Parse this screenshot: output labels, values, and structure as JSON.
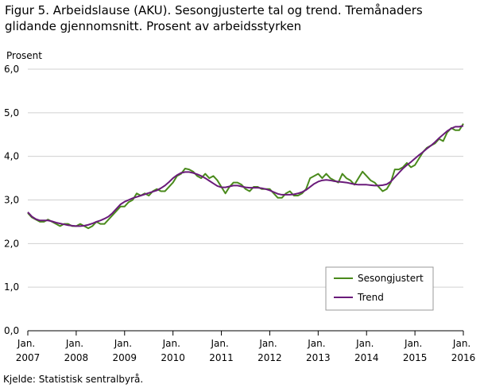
{
  "chart_data": {
    "type": "line",
    "title": "Figur 5. Arbeidslause (AKU). Sesongjusterte tal og trend. Tremånaders glidande gjennomsnitt. Prosent av arbeidsstyrken",
    "y_label": "Prosent",
    "source": "Kjelde: Statistisk sentralbyrå.",
    "categories": [
      "Jan. 2007",
      null,
      null,
      null,
      null,
      null,
      null,
      null,
      null,
      null,
      null,
      null,
      "Jan. 2008",
      null,
      null,
      null,
      null,
      null,
      null,
      null,
      null,
      null,
      null,
      null,
      "Jan. 2009",
      null,
      null,
      null,
      null,
      null,
      null,
      null,
      null,
      null,
      null,
      null,
      "Jan. 2010",
      null,
      null,
      null,
      null,
      null,
      null,
      null,
      null,
      null,
      null,
      null,
      "Jan. 2011",
      null,
      null,
      null,
      null,
      null,
      null,
      null,
      null,
      null,
      null,
      null,
      "Jan. 2012",
      null,
      null,
      null,
      null,
      null,
      null,
      null,
      null,
      null,
      null,
      null,
      "Jan. 2013",
      null,
      null,
      null,
      null,
      null,
      null,
      null,
      null,
      null,
      null,
      null,
      "Jan. 2014",
      null,
      null,
      null,
      null,
      null,
      null,
      null,
      null,
      null,
      null,
      null,
      "Jan. 2015",
      null,
      null,
      null,
      null,
      null,
      null,
      null,
      null,
      null,
      null,
      null,
      "Jan. 2016"
    ],
    "series": [
      {
        "name": "Sesongjustert",
        "color": "#4a8a1c",
        "values": [
          2.7,
          2.6,
          2.55,
          2.5,
          2.5,
          2.55,
          2.5,
          2.45,
          2.4,
          2.45,
          2.45,
          2.4,
          2.4,
          2.45,
          2.4,
          2.35,
          2.4,
          2.5,
          2.45,
          2.45,
          2.55,
          2.65,
          2.75,
          2.85,
          2.85,
          2.95,
          3.0,
          3.15,
          3.1,
          3.15,
          3.1,
          3.2,
          3.25,
          3.2,
          3.2,
          3.3,
          3.4,
          3.55,
          3.6,
          3.72,
          3.7,
          3.65,
          3.55,
          3.5,
          3.6,
          3.5,
          3.55,
          3.45,
          3.3,
          3.15,
          3.3,
          3.4,
          3.4,
          3.35,
          3.25,
          3.2,
          3.3,
          3.3,
          3.25,
          3.25,
          3.25,
          3.15,
          3.05,
          3.05,
          3.15,
          3.2,
          3.1,
          3.1,
          3.15,
          3.25,
          3.5,
          3.55,
          3.6,
          3.5,
          3.6,
          3.5,
          3.45,
          3.4,
          3.6,
          3.5,
          3.45,
          3.35,
          3.5,
          3.65,
          3.55,
          3.45,
          3.4,
          3.3,
          3.2,
          3.25,
          3.4,
          3.7,
          3.7,
          3.75,
          3.85,
          3.75,
          3.8,
          3.95,
          4.1,
          4.2,
          4.25,
          4.3,
          4.4,
          4.35,
          4.55,
          4.65,
          4.6,
          4.6,
          4.75
        ]
      },
      {
        "name": "Trend",
        "color": "#6a1b7a",
        "values": [
          2.72,
          2.62,
          2.56,
          2.53,
          2.53,
          2.53,
          2.51,
          2.48,
          2.46,
          2.44,
          2.42,
          2.41,
          2.4,
          2.4,
          2.41,
          2.43,
          2.46,
          2.5,
          2.53,
          2.57,
          2.62,
          2.7,
          2.8,
          2.9,
          2.96,
          3.0,
          3.04,
          3.07,
          3.1,
          3.13,
          3.16,
          3.19,
          3.22,
          3.27,
          3.33,
          3.41,
          3.5,
          3.57,
          3.62,
          3.64,
          3.64,
          3.62,
          3.59,
          3.55,
          3.5,
          3.44,
          3.38,
          3.32,
          3.29,
          3.29,
          3.31,
          3.33,
          3.33,
          3.31,
          3.29,
          3.28,
          3.28,
          3.28,
          3.27,
          3.25,
          3.22,
          3.18,
          3.14,
          3.12,
          3.12,
          3.12,
          3.13,
          3.15,
          3.18,
          3.23,
          3.3,
          3.37,
          3.42,
          3.45,
          3.46,
          3.45,
          3.43,
          3.42,
          3.41,
          3.4,
          3.38,
          3.36,
          3.35,
          3.35,
          3.35,
          3.34,
          3.33,
          3.33,
          3.34,
          3.36,
          3.42,
          3.52,
          3.62,
          3.72,
          3.8,
          3.87,
          3.95,
          4.03,
          4.1,
          4.18,
          4.25,
          4.33,
          4.42,
          4.5,
          4.58,
          4.64,
          4.68,
          4.68,
          4.7
        ]
      }
    ],
    "ylim": [
      0,
      6
    ],
    "yticks": [
      {
        "value": 0,
        "label": "0,0"
      },
      {
        "value": 1,
        "label": "1,0"
      },
      {
        "value": 2,
        "label": "2,0"
      },
      {
        "value": 3,
        "label": "3,0"
      },
      {
        "value": 4,
        "label": "4,0"
      },
      {
        "value": 5,
        "label": "5,0"
      },
      {
        "value": 6,
        "label": "6,0"
      }
    ],
    "grid": true,
    "legend": "lower right"
  }
}
